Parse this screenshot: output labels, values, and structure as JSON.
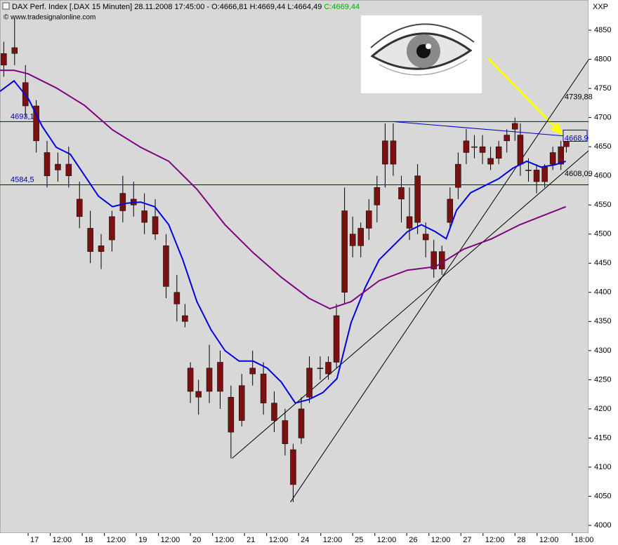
{
  "chart_data": {
    "type": "candlestick",
    "title": "DAX Perf. Index [.DAX  15 Minuten] 28.11.2008 17:45:00 - O:4666,81 H:4669,44 L:4664,49 ",
    "close_label": "C:4669,44",
    "source": "© www.tradesignalonline.com",
    "corner_label": "XXP",
    "xlim": [
      -0.52,
      10.36
    ],
    "ylim": [
      3986.8,
      4901.8
    ],
    "yticks": [
      4000,
      4050,
      4100,
      4150,
      4200,
      4250,
      4300,
      4350,
      4400,
      4450,
      4500,
      4550,
      4600,
      4650,
      4700,
      4750,
      4800,
      4850
    ],
    "xticks": [
      {
        "value": 0,
        "label": "17"
      },
      {
        "value": 0.41,
        "label": "12:00"
      },
      {
        "value": 1,
        "label": "18"
      },
      {
        "value": 1.41,
        "label": "12:00"
      },
      {
        "value": 2,
        "label": "19"
      },
      {
        "value": 2.41,
        "label": "12:00"
      },
      {
        "value": 3,
        "label": "20"
      },
      {
        "value": 3.41,
        "label": "12:00"
      },
      {
        "value": 4,
        "label": "21"
      },
      {
        "value": 4.41,
        "label": "12:00"
      },
      {
        "value": 5,
        "label": "24"
      },
      {
        "value": 5.41,
        "label": "12:00"
      },
      {
        "value": 6,
        "label": "25"
      },
      {
        "value": 6.41,
        "label": "12:00"
      },
      {
        "value": 7,
        "label": "26"
      },
      {
        "value": 7.41,
        "label": "12:00"
      },
      {
        "value": 8,
        "label": "27"
      },
      {
        "value": 8.41,
        "label": "12:00"
      },
      {
        "value": 9,
        "label": "28"
      },
      {
        "value": 9.41,
        "label": "12:00"
      },
      {
        "value": 10.06,
        "label": "18:00"
      }
    ],
    "up_color": "#7a1010",
    "down_color": "#7a1010",
    "wick_color": "#000000",
    "x": [
      -0.45,
      -0.25,
      -0.05,
      0.15,
      0.35,
      0.55,
      0.75,
      0.95,
      1.15,
      1.35,
      1.55,
      1.75,
      1.95,
      2.15,
      2.35,
      2.55,
      2.75,
      2.9,
      3.0,
      3.15,
      3.35,
      3.55,
      3.75,
      3.95,
      4.15,
      4.35,
      4.55,
      4.75,
      4.9,
      5.05,
      5.2,
      5.4,
      5.55,
      5.7,
      5.85,
      6.0,
      6.15,
      6.3,
      6.45,
      6.6,
      6.75,
      6.9,
      7.05,
      7.2,
      7.35,
      7.5,
      7.65,
      7.8,
      7.95,
      8.1,
      8.25,
      8.4,
      8.55,
      8.7,
      8.85,
      9.0,
      9.1,
      9.25,
      9.4,
      9.55,
      9.7,
      9.85,
      9.95
    ],
    "open": [
      4790,
      4810,
      4760,
      4720,
      4640,
      4610,
      4620,
      4560,
      4510,
      4470,
      4490,
      4540,
      4560,
      4540,
      4530,
      4480,
      4400,
      4360,
      4270,
      4230,
      4230,
      4280,
      4220,
      4180,
      4260,
      4260,
      4210,
      4180,
      4130,
      4150,
      4220,
      4270,
      4260,
      4280,
      4400,
      4500,
      4480,
      4510,
      4550,
      4620,
      4660,
      4580,
      4530,
      4520,
      4500,
      4470,
      4440,
      4520,
      4580,
      4640,
      4650,
      4650,
      4630,
      4630,
      4660,
      4680,
      4670,
      4610,
      4610,
      4590,
      4620,
      4620,
      4650
    ],
    "high": [
      4830,
      4870,
      4790,
      4730,
      4660,
      4640,
      4650,
      4590,
      4540,
      4500,
      4540,
      4600,
      4590,
      4570,
      4560,
      4500,
      4430,
      4380,
      4280,
      4250,
      4310,
      4300,
      4240,
      4260,
      4300,
      4280,
      4230,
      4200,
      4140,
      4220,
      4290,
      4290,
      4290,
      4380,
      4580,
      4530,
      4520,
      4560,
      4600,
      4690,
      4690,
      4600,
      4580,
      4620,
      4520,
      4490,
      4480,
      4580,
      4640,
      4680,
      4670,
      4670,
      4650,
      4660,
      4680,
      4700,
      4690,
      4630,
      4620,
      4620,
      4650,
      4660,
      4670
    ],
    "low": [
      4770,
      4790,
      4700,
      4640,
      4580,
      4590,
      4580,
      4510,
      4450,
      4440,
      4470,
      4520,
      4530,
      4500,
      4490,
      4390,
      4350,
      4340,
      4210,
      4190,
      4210,
      4200,
      4115,
      4170,
      4240,
      4190,
      4160,
      4120,
      4040,
      4140,
      4210,
      4250,
      4250,
      4270,
      4380,
      4460,
      4460,
      4490,
      4520,
      4580,
      4600,
      4520,
      4490,
      4500,
      4460,
      4425,
      4430,
      4510,
      4560,
      4620,
      4630,
      4620,
      4610,
      4620,
      4640,
      4660,
      4600,
      4590,
      4570,
      4580,
      4610,
      4610,
      4640
    ],
    "close": [
      4810,
      4820,
      4720,
      4660,
      4600,
      4620,
      4600,
      4530,
      4470,
      4480,
      4530,
      4570,
      4550,
      4520,
      4500,
      4410,
      4380,
      4350,
      4230,
      4220,
      4270,
      4230,
      4160,
      4240,
      4270,
      4210,
      4180,
      4140,
      4070,
      4200,
      4270,
      4270,
      4280,
      4360,
      4540,
      4480,
      4510,
      4540,
      4580,
      4660,
      4620,
      4560,
      4510,
      4600,
      4490,
      4440,
      4470,
      4560,
      4620,
      4660,
      4650,
      4640,
      4620,
      4650,
      4670,
      4690,
      4620,
      4610,
      4590,
      4615,
      4640,
      4650,
      4669.44
    ],
    "overlays": [
      {
        "color": "#0000dd",
        "x": [
          -0.52,
          -0.26,
          0,
          0.26,
          0.52,
          0.78,
          1.04,
          1.3,
          1.56,
          1.82,
          2.08,
          2.34,
          2.6,
          2.86,
          3.12,
          3.38,
          3.64,
          3.9,
          4.16,
          4.42,
          4.68,
          4.94,
          5.19,
          5.45,
          5.71,
          5.84,
          5.97,
          6.23,
          6.49,
          6.75,
          7.01,
          7.27,
          7.53,
          7.73,
          7.92,
          8.18,
          8.44,
          8.7,
          8.96,
          9.22,
          9.48,
          9.74,
          9.94
        ],
        "values": [
          4745,
          4763,
          4733,
          4685,
          4649,
          4637,
          4601,
          4565,
          4547,
          4553,
          4555,
          4547,
          4516,
          4456,
          4384,
          4336,
          4300,
          4282,
          4282,
          4270,
          4246,
          4210,
          4216,
          4228,
          4252,
          4300,
          4348,
          4408,
          4456,
          4480,
          4504,
          4516,
          4504,
          4492,
          4541,
          4571,
          4583,
          4595,
          4613,
          4625,
          4615,
          4619,
          4625
        ]
      },
      {
        "color": "#800080",
        "x": [
          -0.52,
          -0.26,
          0,
          0.52,
          1.04,
          1.56,
          2.08,
          2.6,
          3.12,
          3.64,
          4.16,
          4.68,
          5.19,
          5.58,
          5.97,
          6.49,
          7.01,
          7.53,
          8.05,
          8.57,
          9.09,
          9.61,
          9.94
        ],
        "values": [
          4781,
          4781,
          4775,
          4751,
          4721,
          4679,
          4649,
          4625,
          4577,
          4516,
          4468,
          4426,
          4390,
          4372,
          4384,
          4420,
          4438,
          4444,
          4474,
          4492,
          4516,
          4535,
          4547
        ]
      }
    ],
    "levels": [
      {
        "value": 4693.1,
        "label": "4693,1",
        "color": "#0000aa"
      },
      {
        "value": 4584.5,
        "label": "4584,5",
        "color": "#0000aa"
      }
    ],
    "trend_lines": [
      {
        "color": "#000000",
        "x": [
          3.77,
          10.36
        ],
        "y": [
          4115,
          4643
        ]
      },
      {
        "color": "#000000",
        "x": [
          4.85,
          10.36
        ],
        "y": [
          4040,
          4799
        ]
      },
      {
        "color": "#0000cc",
        "x": [
          6.75,
          10.36
        ],
        "y": [
          4693,
          4665
        ]
      }
    ],
    "annotations": [
      {
        "text": "4739,88",
        "value": 4739.88
      },
      {
        "text": "4668,9",
        "value": 4668.9
      },
      {
        "text": "4608,09",
        "value": 4608.09
      }
    ]
  }
}
